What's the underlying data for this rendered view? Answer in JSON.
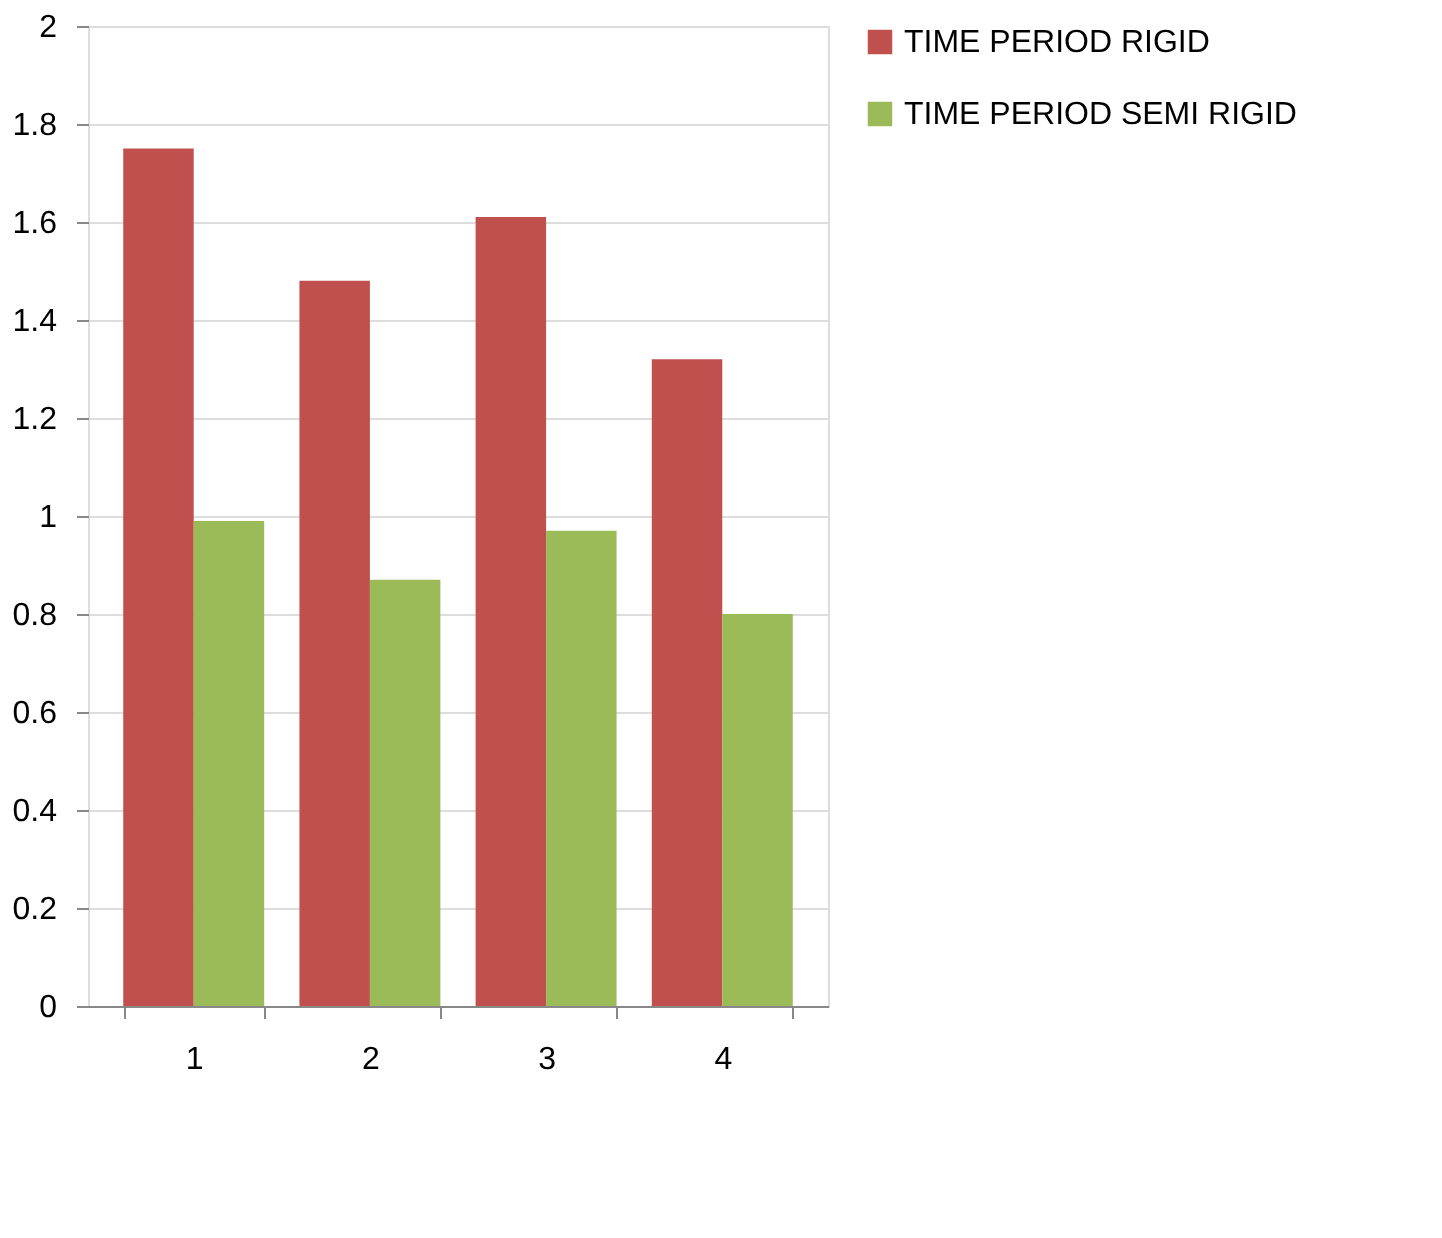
{
  "chart_data": {
    "type": "bar",
    "categories": [
      "1",
      "2",
      "3",
      "4"
    ],
    "series": [
      {
        "name": "TIME PERIOD RIGID",
        "color": "#c0504d",
        "values": [
          1.75,
          1.48,
          1.61,
          1.32
        ]
      },
      {
        "name": "TIME PERIOD SEMI RIGID",
        "color": "#9bbb59",
        "values": [
          0.99,
          0.87,
          0.97,
          0.8
        ]
      }
    ],
    "ylim": [
      0,
      2
    ],
    "yticks": [
      0,
      0.2,
      0.4,
      0.6,
      0.8,
      1,
      1.2,
      1.4,
      1.6,
      1.8,
      2
    ],
    "grid": "y",
    "legend": "right"
  }
}
